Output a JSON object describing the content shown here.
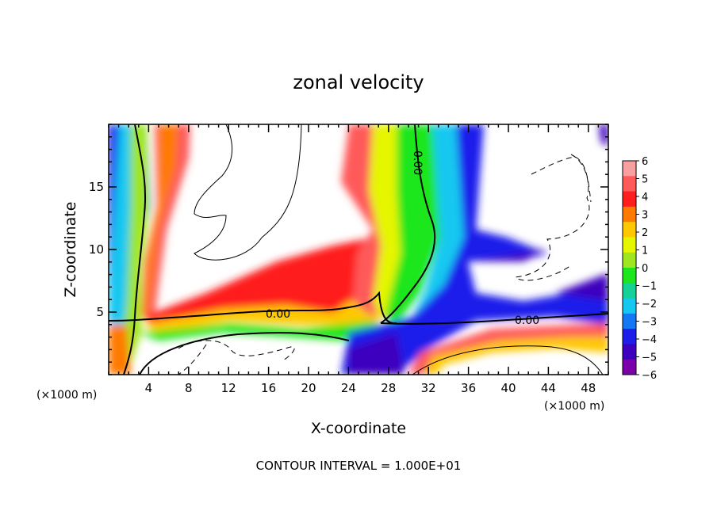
{
  "chart_data": {
    "type": "heatmap",
    "title": "zonal velocity",
    "xlabel": "X-coordinate",
    "ylabel": "Z-coordinate",
    "x_unit": "(×1000 m)",
    "y_unit": "(×1000 m)",
    "xlim": [
      0,
      50
    ],
    "ylim": [
      0,
      20
    ],
    "x_ticks": [
      4,
      8,
      12,
      16,
      20,
      24,
      28,
      32,
      36,
      40,
      44,
      48
    ],
    "y_ticks": [
      5,
      10,
      15
    ],
    "colorbar": {
      "levels": [
        6,
        5,
        4,
        3,
        2,
        1,
        0,
        -1,
        -2,
        -3,
        -4,
        -5,
        -6
      ],
      "colors": [
        "#f7a0a0",
        "#ff5a5a",
        "#ff1e1e",
        "#ff7a00",
        "#ffc800",
        "#e6f500",
        "#9ee61e",
        "#1ee61e",
        "#14d296",
        "#14c8f0",
        "#1478f5",
        "#1e1eeb",
        "#3c00be",
        "#7a00aa"
      ]
    },
    "contour_labels": [
      "0.00",
      "0.00",
      "0.00"
    ],
    "footnote": "CONTOUR INTERVAL = 1.000E+01"
  }
}
